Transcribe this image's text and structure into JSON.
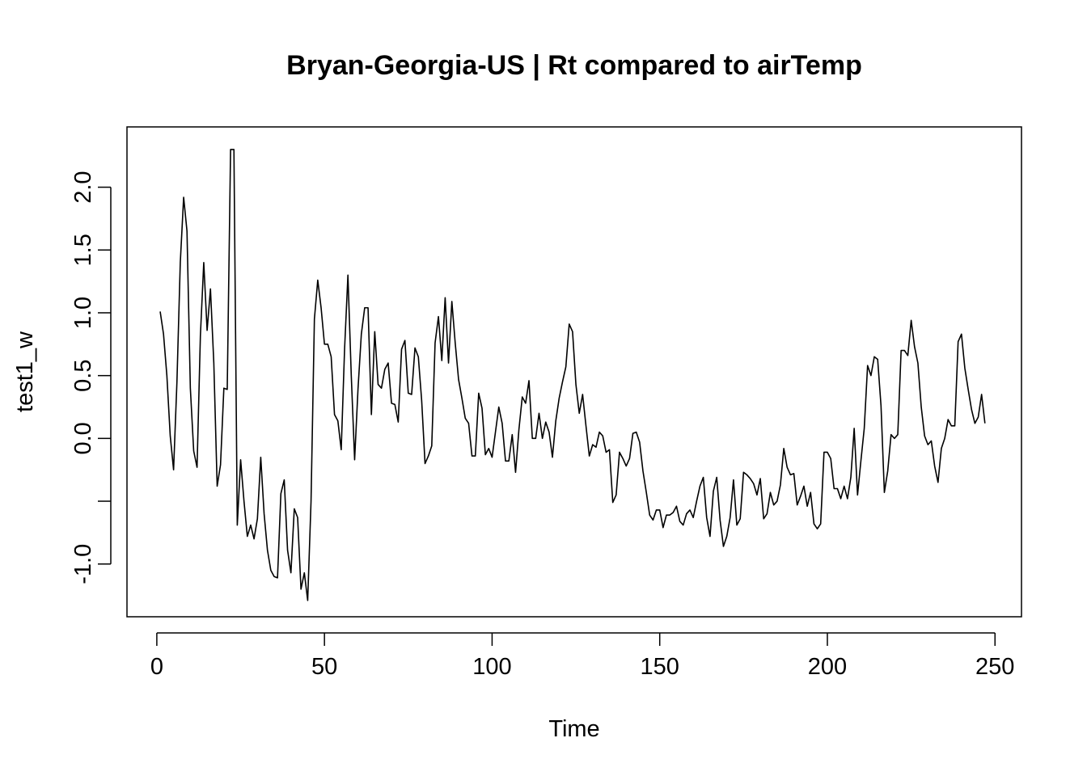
{
  "chart_data": {
    "type": "line",
    "title": "Bryan-Georgia-US | Rt compared to airTemp",
    "xlabel": "Time",
    "ylabel": "test1_w",
    "xlim": [
      -8.9,
      257.9
    ],
    "ylim": [
      -1.42,
      2.48
    ],
    "x_ticks": [
      0,
      50,
      100,
      150,
      200,
      250
    ],
    "x_tick_labels": [
      "0",
      "50",
      "100",
      "150",
      "200",
      "250"
    ],
    "y_ticks": [
      -1.0,
      -0.5,
      0.0,
      0.5,
      1.0,
      1.5,
      2.0
    ],
    "y_tick_labels": [
      "-1.0",
      "",
      "0.0",
      "0.5",
      "1.0",
      "1.5",
      "2.0"
    ],
    "grid": false,
    "legend": "none",
    "line_color": "#000000",
    "series": [
      {
        "x_start": 1,
        "values": [
          1.01,
          0.83,
          0.5,
          0.02,
          -0.25,
          0.45,
          1.4,
          1.92,
          1.65,
          0.4,
          -0.1,
          -0.23,
          0.82,
          1.4,
          0.86,
          1.19,
          0.6,
          -0.38,
          -0.21,
          0.4,
          0.39,
          2.3,
          2.3,
          -0.69,
          -0.17,
          -0.5,
          -0.78,
          -0.69,
          -0.8,
          -0.64,
          -0.15,
          -0.6,
          -0.89,
          -1.05,
          -1.1,
          -1.11,
          -0.44,
          -0.33,
          -0.89,
          -1.07,
          -0.56,
          -0.63,
          -1.2,
          -1.07,
          -1.29,
          -0.5,
          0.95,
          1.26,
          1.04,
          0.75,
          0.75,
          0.65,
          0.19,
          0.14,
          -0.09,
          0.71,
          1.3,
          0.5,
          -0.17,
          0.39,
          0.83,
          1.04,
          1.04,
          0.19,
          0.85,
          0.43,
          0.4,
          0.55,
          0.6,
          0.28,
          0.27,
          0.13,
          0.71,
          0.78,
          0.36,
          0.35,
          0.72,
          0.65,
          0.3,
          -0.2,
          -0.14,
          -0.06,
          0.76,
          0.97,
          0.62,
          1.12,
          0.6,
          1.09,
          0.76,
          0.47,
          0.32,
          0.16,
          0.12,
          -0.14,
          -0.14,
          0.36,
          0.24,
          -0.13,
          -0.08,
          -0.15,
          0.05,
          0.25,
          0.12,
          -0.18,
          -0.18,
          0.03,
          -0.27,
          0.07,
          0.33,
          0.28,
          0.46,
          0.0,
          0.0,
          0.2,
          0.0,
          0.13,
          0.05,
          -0.15,
          0.14,
          0.32,
          0.45,
          0.57,
          0.91,
          0.85,
          0.43,
          0.2,
          0.35,
          0.1,
          -0.14,
          -0.05,
          -0.07,
          0.05,
          0.02,
          -0.11,
          -0.09,
          -0.51,
          -0.45,
          -0.11,
          -0.16,
          -0.22,
          -0.16,
          0.04,
          0.05,
          -0.03,
          -0.26,
          -0.43,
          -0.61,
          -0.65,
          -0.57,
          -0.57,
          -0.71,
          -0.61,
          -0.61,
          -0.59,
          -0.54,
          -0.66,
          -0.69,
          -0.6,
          -0.57,
          -0.63,
          -0.5,
          -0.38,
          -0.31,
          -0.63,
          -0.78,
          -0.42,
          -0.31,
          -0.65,
          -0.86,
          -0.78,
          -0.63,
          -0.33,
          -0.69,
          -0.64,
          -0.27,
          -0.29,
          -0.32,
          -0.36,
          -0.45,
          -0.32,
          -0.64,
          -0.6,
          -0.43,
          -0.53,
          -0.5,
          -0.37,
          -0.08,
          -0.23,
          -0.29,
          -0.28,
          -0.53,
          -0.46,
          -0.38,
          -0.54,
          -0.43,
          -0.68,
          -0.72,
          -0.68,
          -0.11,
          -0.11,
          -0.16,
          -0.4,
          -0.4,
          -0.48,
          -0.38,
          -0.48,
          -0.31,
          0.08,
          -0.45,
          -0.18,
          0.08,
          0.58,
          0.5,
          0.65,
          0.63,
          0.26,
          -0.43,
          -0.26,
          0.03,
          0.0,
          0.03,
          0.7,
          0.7,
          0.66,
          0.94,
          0.73,
          0.6,
          0.25,
          0.02,
          -0.05,
          -0.02,
          -0.22,
          -0.35,
          -0.08,
          0.0,
          0.15,
          0.1,
          0.1,
          0.77,
          0.83,
          0.56,
          0.39,
          0.23,
          0.12,
          0.17,
          0.35,
          0.12
        ]
      }
    ]
  }
}
